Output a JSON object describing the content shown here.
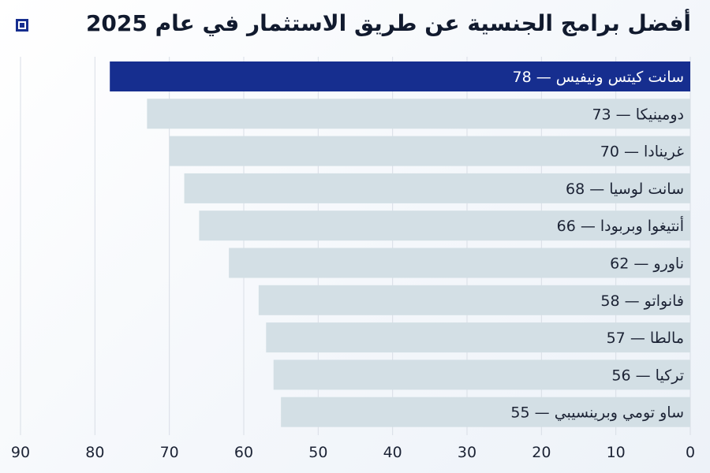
{
  "title": "أفضل برامج الجنسية عن طريق الاستثمار في عام 2025",
  "logo_icon": "square-dot-logo",
  "colors": {
    "highlight": "#162e8f",
    "bar": "#d3dfe5",
    "text": "#1c2335"
  },
  "chart_data": {
    "type": "bar",
    "orientation": "horizontal",
    "direction": "right-to-left",
    "title": "أفضل برامج الجنسية عن طريق الاستثمار في عام 2025",
    "categories": [
      "سانت كيتس ونيفيس",
      "دومينيكا",
      "غرينادا",
      "سانت لوسيا",
      "أنتيغوا وبربودا",
      "ناورو",
      "فانواتو",
      "مالطا",
      "تركيا",
      "ساو تومي وبرينسيبي"
    ],
    "values": [
      78,
      73,
      70,
      68,
      66,
      62,
      58,
      57,
      56,
      55
    ],
    "labels": [
      "سانت كيتس ونيفيس — 78",
      "دومينيكا — 73",
      "غرينادا — 70",
      "سانت لوسيا — 68",
      "أنتيغوا وبربودا — 66",
      "ناورو — 62",
      "فانواتو — 58",
      "مالطا — 57",
      "تركيا — 56",
      "ساو تومي وبرينسيبي — 55"
    ],
    "highlighted_index": 0,
    "xlim": [
      0,
      90
    ],
    "xticks": [
      "0",
      "10",
      "20",
      "30",
      "40",
      "50",
      "60",
      "70",
      "80",
      "90"
    ],
    "grid": true,
    "xlabel": "",
    "ylabel": ""
  }
}
